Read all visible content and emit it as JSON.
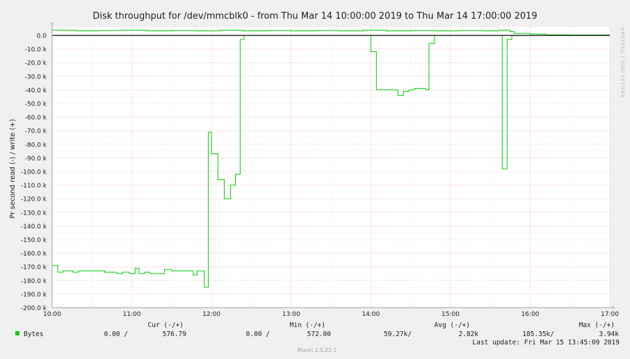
{
  "chart_data": {
    "type": "line",
    "title": "Disk throughput for /dev/mmcblk0 - from Thu Mar 14 10:00:00 2019 to Thu Mar 14 17:00:00 2019",
    "ylabel": "Pr second read (-) / write (+)",
    "xlabel": "",
    "xlim": [
      10,
      17
    ],
    "ylim": [
      -200000,
      5000
    ],
    "x_ticks": [
      "10:00",
      "11:00",
      "12:00",
      "13:00",
      "14:00",
      "15:00",
      "16:00",
      "17:00"
    ],
    "y_ticks": [
      "0.0",
      "-10.0 k",
      "-20.0 k",
      "-30.0 k",
      "-40.0 k",
      "-50.0 k",
      "-60.0 k",
      "-70.0 k",
      "-80.0 k",
      "-90.0 k",
      "-100.0 k",
      "-110.0 k",
      "-120.0 k",
      "-130.0 k",
      "-140.0 k",
      "-150.0 k",
      "-160.0 k",
      "-170.0 k",
      "-180.0 k",
      "-190.0 k",
      "-200.0 k"
    ],
    "grid": true,
    "series": [
      {
        "name": "Bytes",
        "color": "#00cc00",
        "read": [
          [
            10.0,
            -169000
          ],
          [
            10.07,
            -174000
          ],
          [
            10.14,
            -173000
          ],
          [
            10.26,
            -174000
          ],
          [
            10.33,
            -173000
          ],
          [
            10.66,
            -174000
          ],
          [
            10.81,
            -175000
          ],
          [
            10.88,
            -174000
          ],
          [
            10.97,
            -175000
          ],
          [
            11.04,
            -171000
          ],
          [
            11.09,
            -175000
          ],
          [
            11.16,
            -174000
          ],
          [
            11.23,
            -175000
          ],
          [
            11.41,
            -172000
          ],
          [
            11.5,
            -173000
          ],
          [
            11.7,
            -173000
          ],
          [
            11.77,
            -176000
          ],
          [
            11.82,
            -173000
          ],
          [
            11.91,
            -185000
          ],
          [
            11.96,
            -71000
          ],
          [
            12.0,
            -87000
          ],
          [
            12.08,
            -106000
          ],
          [
            12.16,
            -120000
          ],
          [
            12.24,
            -110000
          ],
          [
            12.3,
            -102000
          ],
          [
            12.36,
            -3000
          ],
          [
            12.41,
            0
          ],
          [
            13.98,
            0
          ],
          [
            14.0,
            -12000
          ],
          [
            14.07,
            -40000
          ],
          [
            14.34,
            -44000
          ],
          [
            14.41,
            -41000
          ],
          [
            14.48,
            -40000
          ],
          [
            14.55,
            -39000
          ],
          [
            14.69,
            -40000
          ],
          [
            14.73,
            -6000
          ],
          [
            14.8,
            0
          ],
          [
            15.63,
            0
          ],
          [
            15.65,
            -98000
          ],
          [
            15.71,
            -3000
          ],
          [
            15.77,
            0
          ],
          [
            17.0,
            0
          ]
        ],
        "write": [
          [
            10.0,
            3900
          ],
          [
            10.3,
            3300
          ],
          [
            10.6,
            3600
          ],
          [
            10.85,
            3900
          ],
          [
            11.2,
            3300
          ],
          [
            11.5,
            3600
          ],
          [
            11.8,
            3300
          ],
          [
            12.1,
            3900
          ],
          [
            12.4,
            3300
          ],
          [
            12.7,
            3600
          ],
          [
            13.0,
            3300
          ],
          [
            13.3,
            3600
          ],
          [
            13.6,
            3300
          ],
          [
            13.9,
            3900
          ],
          [
            14.2,
            3300
          ],
          [
            14.5,
            3600
          ],
          [
            14.8,
            3300
          ],
          [
            15.1,
            3600
          ],
          [
            15.4,
            3300
          ],
          [
            15.6,
            3900
          ],
          [
            15.75,
            2800
          ],
          [
            15.8,
            1500
          ],
          [
            16.0,
            1000
          ],
          [
            16.2,
            400
          ],
          [
            16.5,
            300
          ],
          [
            16.8,
            300
          ],
          [
            17.0,
            300
          ]
        ]
      }
    ],
    "legend": {
      "position": "bottom-left",
      "headers": [
        "Cur (-/+)",
        "Min (-/+)",
        "Avg (-/+)",
        "Max (-/+)"
      ],
      "row": {
        "name": "Bytes",
        "cur": "0.00 /",
        "cur_w": "576.79",
        "min": "0.00 /",
        "min_w": "572.00",
        "avg": "59.27k/",
        "avg_w": "2.82k",
        "max": "185.35k/",
        "max_w": "3.94k"
      }
    },
    "last_update": "Last update: Fri Mar 15 13:45:09 2019",
    "side_text": "RRDTOOL / TOBI OETIKER",
    "footer": "Munin 2.0.22-1"
  }
}
